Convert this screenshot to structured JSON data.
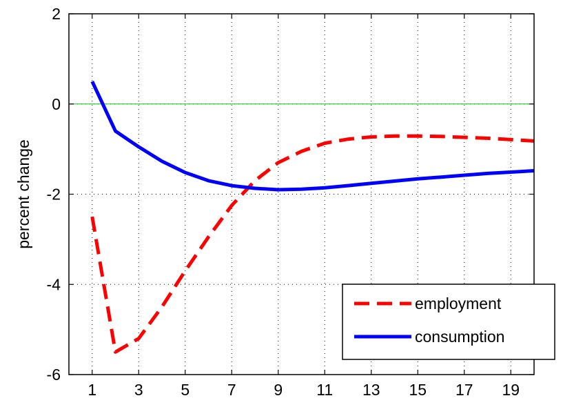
{
  "chart_data": {
    "type": "line",
    "title": "",
    "xlabel": "",
    "ylabel": "percent change",
    "xlim": [
      0,
      20
    ],
    "ylim": [
      -6,
      2
    ],
    "xticks": [
      1,
      3,
      5,
      7,
      9,
      11,
      13,
      15,
      17,
      19
    ],
    "yticks": [
      -6,
      -4,
      -2,
      0,
      2
    ],
    "grid": true,
    "legend_position": "bottom-right",
    "zero_line": {
      "y": 0,
      "color": "#00cc00"
    },
    "series": [
      {
        "name": "employment",
        "color": "#ff0000",
        "style": "dashed",
        "x": [
          1,
          2,
          3,
          4,
          5,
          6,
          7,
          8,
          9,
          10,
          11,
          12,
          13,
          14,
          15,
          16,
          17,
          18,
          19,
          20
        ],
        "values": [
          -2.5,
          -5.5,
          -5.2,
          -4.5,
          -3.7,
          -2.95,
          -2.25,
          -1.7,
          -1.3,
          -1.05,
          -0.87,
          -0.78,
          -0.73,
          -0.71,
          -0.71,
          -0.72,
          -0.74,
          -0.76,
          -0.79,
          -0.82
        ]
      },
      {
        "name": "consumption",
        "color": "#0000ff",
        "style": "solid",
        "x": [
          1,
          2,
          3,
          4,
          5,
          6,
          7,
          8,
          9,
          10,
          11,
          12,
          13,
          14,
          15,
          16,
          17,
          18,
          19,
          20
        ],
        "values": [
          0.5,
          -0.6,
          -0.95,
          -1.27,
          -1.52,
          -1.7,
          -1.81,
          -1.87,
          -1.9,
          -1.89,
          -1.86,
          -1.81,
          -1.76,
          -1.71,
          -1.66,
          -1.62,
          -1.58,
          -1.54,
          -1.51,
          -1.48
        ]
      }
    ]
  }
}
